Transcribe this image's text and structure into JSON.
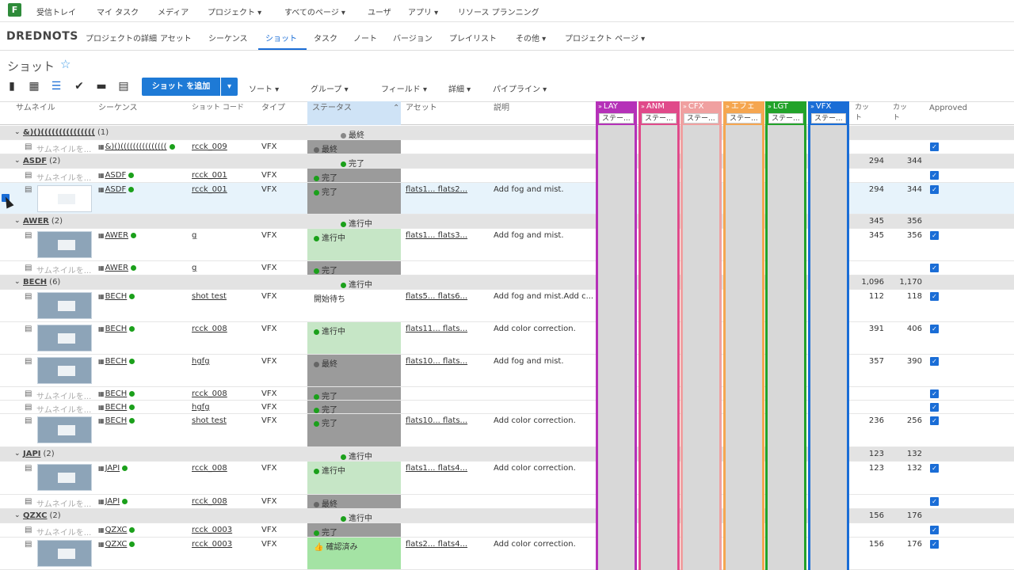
{
  "topnav": {
    "logo": "F",
    "items": [
      "受信トレイ",
      "マイ タスク",
      "メディア",
      "プロジェクト ▾",
      "すべてのページ ▾",
      "ユーザ",
      "アプリ ▾",
      "リソース プランニング"
    ]
  },
  "project": {
    "name": "DREDNOTS",
    "tabs": [
      "プロジェクトの詳細",
      "アセット",
      "シーケンス",
      "ショット",
      "タスク",
      "ノート",
      "バージョン",
      "プレイリスト",
      "その他 ▾",
      "プロジェクト ページ ▾"
    ]
  },
  "page": {
    "title": "ショット",
    "star": "☆"
  },
  "toolbar": {
    "add_label": "ショット を追加",
    "add_caret": "▾",
    "dropdowns": [
      "ソート ▾",
      "グループ ▾",
      "フィールド ▾",
      "詳細 ▾",
      "パイプライン ▾"
    ]
  },
  "columns": {
    "thumb": "サムネイル",
    "seq": "シーケンス",
    "code": "ショット コード",
    "type": "タイプ",
    "status": "ステータス",
    "assets": "アセット",
    "desc": "説明",
    "cut1": "カット",
    "cut2": "カット",
    "approved": "Approved"
  },
  "pipeline": [
    {
      "label": "LAY",
      "sub": "ステー...",
      "color": "#b531b8"
    },
    {
      "label": "ANM",
      "sub": "ステー...",
      "color": "#e04a8a"
    },
    {
      "label": "CFX",
      "sub": "ステー...",
      "color": "#f0a0a0"
    },
    {
      "label": "エフェ",
      "sub": "ステー...",
      "color": "#f5a650"
    },
    {
      "label": "LGT",
      "sub": "ステー...",
      "color": "#22a32a"
    },
    {
      "label": "VFX",
      "sub": "ステー...",
      "color": "#1a6dd6"
    }
  ],
  "groups": [
    {
      "name": "&)()(((((((((((((((",
      "count": "(1)",
      "status": "最終",
      "status_color": "#888",
      "cut1": "",
      "cut2": ""
    },
    {
      "name": "ASDF",
      "count": "(2)",
      "status": "完了",
      "status_color": "#1ba01b",
      "cut1": "294",
      "cut2": "344"
    },
    {
      "name": "AWER",
      "count": "(2)",
      "status": "進行中",
      "status_color": "#1ba01b",
      "cut1": "345",
      "cut2": "356"
    },
    {
      "name": "BECH",
      "count": "(6)",
      "status": "進行中",
      "status_color": "#1ba01b",
      "cut1": "1,096",
      "cut2": "1,170"
    },
    {
      "name": "JAPI",
      "count": "(2)",
      "status": "進行中",
      "status_color": "#1ba01b",
      "cut1": "123",
      "cut2": "132"
    },
    {
      "name": "QZXC",
      "count": "(2)",
      "status": "進行中",
      "status_color": "#1ba01b",
      "cut1": "156",
      "cut2": "176"
    }
  ],
  "rows": [
    {
      "thumb": "サムネイルを...",
      "seq": "&)()(((((((((((((((",
      "code": "rcck_009",
      "type": "VFX",
      "status": "最終",
      "assets": "",
      "desc": "",
      "cut1": "",
      "cut2": ""
    },
    {
      "thumb": "サムネイルを...",
      "seq": "ASDF",
      "code": "rcck_001",
      "type": "VFX",
      "status": "完了",
      "assets": "",
      "desc": "",
      "cut1": "",
      "cut2": ""
    },
    {
      "thumb": "",
      "seq": "ASDF",
      "code": "rcck_001",
      "type": "VFX",
      "status": "完了",
      "assets": "flats1...  flats2...",
      "desc": "Add fog and mist.",
      "cut1": "294",
      "cut2": "344"
    },
    {
      "thumb": "",
      "seq": "AWER",
      "code": "g",
      "type": "VFX",
      "status": "進行中",
      "assets": "flats1...  flats3...",
      "desc": "Add fog and mist.",
      "cut1": "345",
      "cut2": "356"
    },
    {
      "thumb": "サムネイルを...",
      "seq": "AWER",
      "code": "g",
      "type": "VFX",
      "status": "完了",
      "assets": "",
      "desc": "",
      "cut1": "",
      "cut2": ""
    },
    {
      "thumb": "",
      "seq": "BECH",
      "code": "shot test",
      "type": "VFX",
      "status": "開始待ち",
      "assets": "flats5...  flats6...",
      "desc": "Add fog and mist.Add c...",
      "cut1": "112",
      "cut2": "118"
    },
    {
      "thumb": "",
      "seq": "BECH",
      "code": "rcck_008",
      "type": "VFX",
      "status": "進行中",
      "assets": "flats11...  flats...",
      "desc": "Add color correction.",
      "cut1": "391",
      "cut2": "406"
    },
    {
      "thumb": "",
      "seq": "BECH",
      "code": "hgfg",
      "type": "VFX",
      "status": "最終",
      "assets": "flats10...  flats...",
      "desc": "Add fog and mist.",
      "cut1": "357",
      "cut2": "390"
    },
    {
      "thumb": "サムネイルを...",
      "seq": "BECH",
      "code": "rcck_008",
      "type": "VFX",
      "status": "完了",
      "assets": "",
      "desc": "",
      "cut1": "",
      "cut2": ""
    },
    {
      "thumb": "サムネイルを...",
      "seq": "BECH",
      "code": "hgfg",
      "type": "VFX",
      "status": "完了",
      "assets": "",
      "desc": "",
      "cut1": "",
      "cut2": ""
    },
    {
      "thumb": "",
      "seq": "BECH",
      "code": "shot test",
      "type": "VFX",
      "status": "完了",
      "assets": "flats10...  flats...",
      "desc": "Add color correction.",
      "cut1": "236",
      "cut2": "256"
    },
    {
      "thumb": "",
      "seq": "JAPI",
      "code": "rcck_008",
      "type": "VFX",
      "status": "進行中",
      "assets": "flats1...  flats4...",
      "desc": "Add color correction.",
      "cut1": "123",
      "cut2": "132"
    },
    {
      "thumb": "サムネイルを...",
      "seq": "JAPI",
      "code": "rcck_008",
      "type": "VFX",
      "status": "最終",
      "assets": "",
      "desc": "",
      "cut1": "",
      "cut2": ""
    },
    {
      "thumb": "サムネイルを...",
      "seq": "QZXC",
      "code": "rcck_0003",
      "type": "VFX",
      "status": "完了",
      "assets": "",
      "desc": "",
      "cut1": "",
      "cut2": ""
    },
    {
      "thumb": "",
      "seq": "QZXC",
      "code": "rcck_0003",
      "type": "VFX",
      "status": "確認済み",
      "assets": "flats2...  flats4...",
      "desc": "Add color correction.",
      "cut1": "156",
      "cut2": "176"
    }
  ]
}
